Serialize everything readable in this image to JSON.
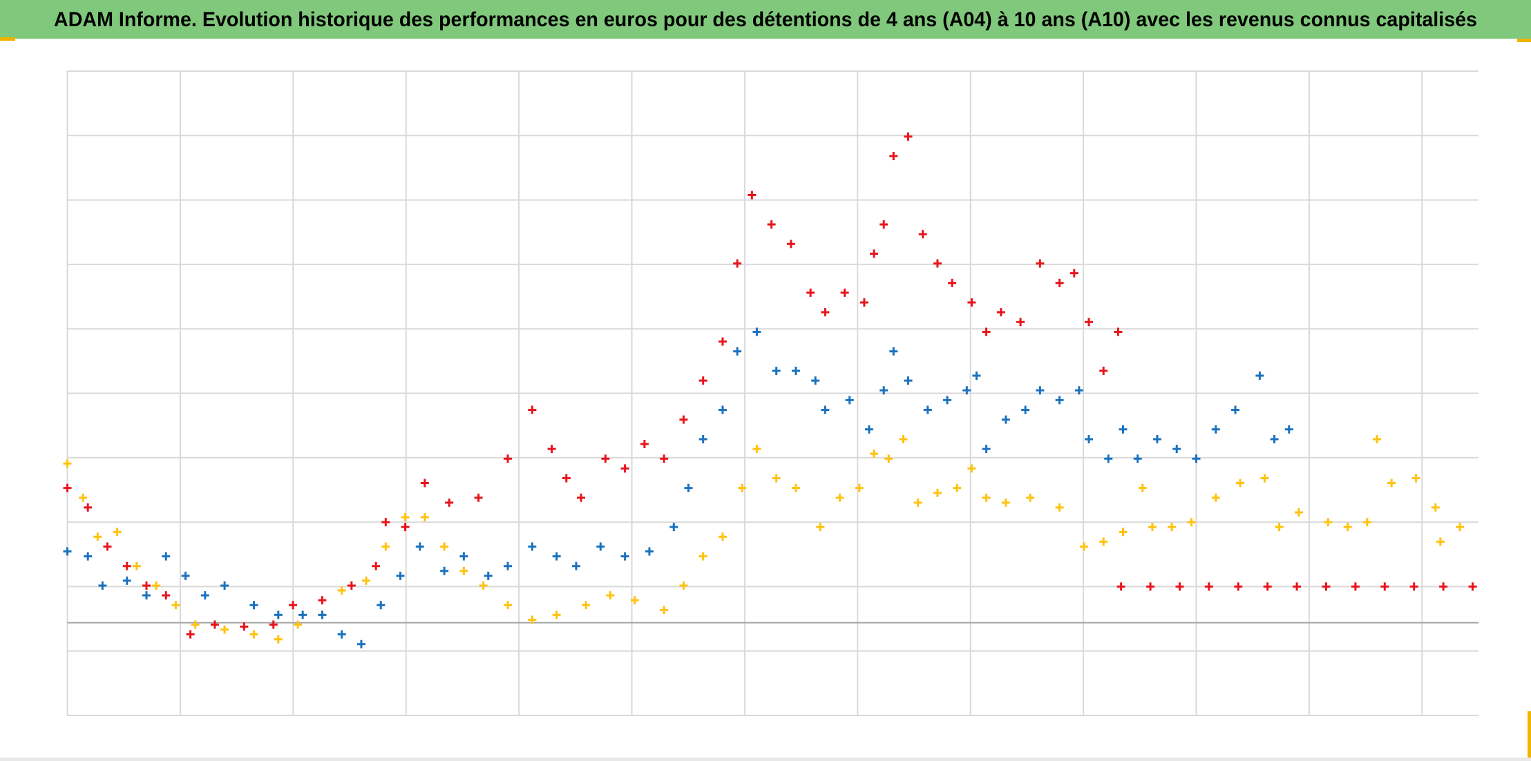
{
  "chart_data": {
    "type": "scatter",
    "title": "ADAM Informe. Evolution historique des performances en euros pour des détentions de 4 ans (A04) à 10 ans (A10) avec les revenus connus capitalisés",
    "xlim": [
      0,
      1445
    ],
    "ylim": [
      0,
      660
    ],
    "xticks": [
      0,
      115.6,
      231.2,
      346.8,
      462.4,
      578,
      693.6,
      809.2,
      924.8,
      1040.4,
      1156,
      1271.6,
      1387.2
    ],
    "yticks": [
      0,
      66,
      132,
      198,
      264,
      330,
      396,
      462,
      528,
      594,
      660
    ],
    "baseline": 95,
    "grid": true,
    "series": [
      {
        "color": "#e8141c",
        "x": [
          0,
          21,
          41,
          61,
          81,
          101,
          126,
          151,
          181,
          211,
          231,
          261,
          291,
          316,
          326,
          346,
          366,
          391,
          421,
          451,
          476,
          496,
          511,
          526,
          551,
          571,
          591,
          611,
          631,
          651,
          671,
          686,
          701,
          721,
          741,
          761,
          776,
          796,
          816,
          826,
          836,
          846,
          861,
          876,
          891,
          906,
          926,
          941,
          956,
          976,
          996,
          1016,
          1031,
          1046,
          1061,
          1076,
          1079,
          1109,
          1139,
          1169,
          1199,
          1229,
          1259,
          1289,
          1319,
          1349,
          1379,
          1409,
          1439
        ],
        "values": [
          233,
          213,
          173,
          153,
          133,
          123,
          83,
          93,
          91,
          93,
          113,
          118,
          133,
          153,
          198,
          193,
          238,
          218,
          223,
          263,
          313,
          273,
          243,
          223,
          263,
          253,
          278,
          263,
          303,
          343,
          383,
          463,
          533,
          503,
          483,
          433,
          413,
          433,
          423,
          473,
          503,
          573,
          593,
          493,
          463,
          443,
          423,
          393,
          413,
          403,
          463,
          443,
          453,
          403,
          353,
          393,
          132,
          132,
          132,
          132,
          132,
          132,
          132,
          132,
          132,
          132,
          132,
          132,
          132
        ]
      },
      {
        "color": "#1a72bf",
        "x": [
          0,
          21,
          36,
          61,
          81,
          101,
          121,
          141,
          161,
          191,
          216,
          241,
          261,
          281,
          301,
          321,
          341,
          361,
          386,
          406,
          431,
          451,
          476,
          501,
          521,
          546,
          571,
          596,
          621,
          636,
          651,
          671,
          686,
          706,
          726,
          746,
          766,
          776,
          801,
          821,
          836,
          846,
          861,
          881,
          901,
          921,
          931,
          941,
          961,
          981,
          996,
          1016,
          1036,
          1046,
          1066,
          1081,
          1096,
          1116,
          1136,
          1156,
          1176,
          1196,
          1221,
          1236,
          1251
        ],
        "values": [
          168,
          163,
          133,
          138,
          123,
          163,
          143,
          123,
          133,
          113,
          103,
          103,
          103,
          83,
          73,
          113,
          143,
          173,
          148,
          163,
          143,
          153,
          173,
          163,
          153,
          173,
          163,
          168,
          193,
          233,
          283,
          313,
          373,
          393,
          353,
          353,
          343,
          313,
          323,
          293,
          333,
          373,
          343,
          313,
          323,
          333,
          348,
          273,
          303,
          313,
          333,
          323,
          333,
          283,
          263,
          293,
          263,
          283,
          273,
          263,
          293,
          313,
          348,
          283,
          293
        ]
      },
      {
        "color": "#ffc20e",
        "x": [
          0,
          16,
          31,
          51,
          71,
          91,
          111,
          131,
          161,
          191,
          216,
          236,
          261,
          281,
          306,
          326,
          346,
          366,
          386,
          406,
          426,
          451,
          476,
          501,
          531,
          556,
          581,
          611,
          631,
          651,
          671,
          691,
          706,
          726,
          746,
          771,
          791,
          811,
          826,
          841,
          856,
          871,
          891,
          911,
          926,
          941,
          961,
          986,
          1016,
          1041,
          1061,
          1081,
          1101,
          1111,
          1131,
          1151,
          1176,
          1201,
          1226,
          1241,
          1261,
          1291,
          1311,
          1331,
          1341,
          1356,
          1381,
          1401,
          1406,
          1426
        ],
        "values": [
          258,
          223,
          183,
          188,
          153,
          133,
          113,
          93,
          88,
          83,
          78,
          93,
          103,
          128,
          138,
          173,
          203,
          203,
          173,
          148,
          133,
          113,
          98,
          103,
          113,
          123,
          118,
          108,
          133,
          163,
          183,
          233,
          273,
          243,
          233,
          193,
          223,
          233,
          268,
          263,
          283,
          218,
          228,
          233,
          253,
          223,
          218,
          223,
          213,
          173,
          178,
          188,
          233,
          193,
          193,
          198,
          223,
          238,
          243,
          193,
          208,
          198,
          193,
          198,
          283,
          238,
          243,
          213,
          178,
          193
        ]
      }
    ]
  }
}
